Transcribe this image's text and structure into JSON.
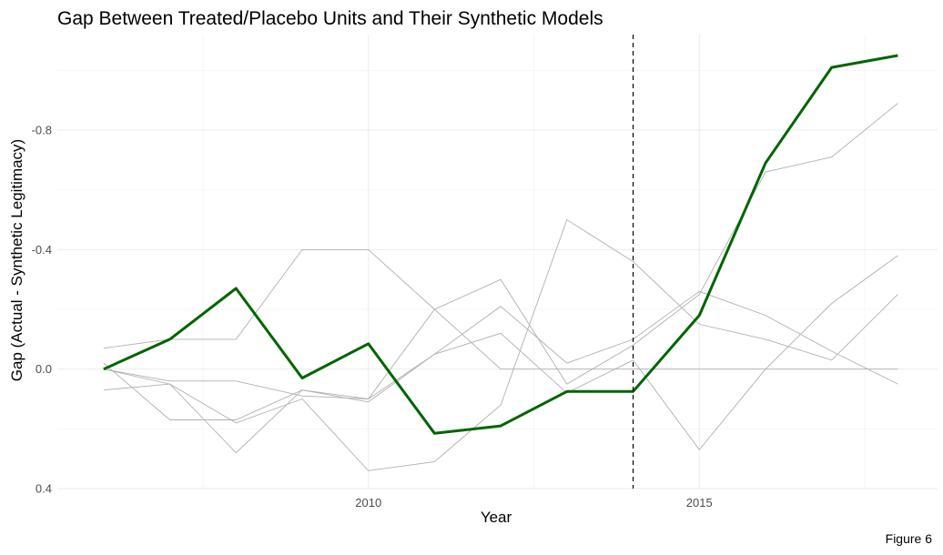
{
  "chart_data": {
    "type": "line",
    "title": "Gap Between Treated/Placebo Units and Their Synthetic Models",
    "xlabel": "Year",
    "ylabel": "Gap (Actual - Synthetic Legitimacy)",
    "caption": "Figure 6",
    "x": [
      2006,
      2007,
      2008,
      2009,
      2010,
      2011,
      2012,
      2013,
      2014,
      2015,
      2016,
      2017,
      2018
    ],
    "xlim": [
      2005.3,
      2018.6
    ],
    "ylim": [
      0.4,
      -1.12
    ],
    "y_reversed": true,
    "x_ticks": [
      2010,
      2015
    ],
    "x_tick_labels": [
      "2010",
      "2015"
    ],
    "y_ticks": [
      0.4,
      0.0,
      -0.4,
      -0.8
    ],
    "y_tick_labels": [
      "0.4",
      "0.0",
      "-0.4",
      "-0.8"
    ],
    "intervention_x": 2014,
    "grid": true,
    "treated_color": "#006400",
    "placebo_color": "#b0b0b0",
    "series": [
      {
        "role": "treated",
        "values": [
          0.0,
          -0.1,
          -0.27,
          0.03,
          -0.085,
          0.215,
          0.19,
          0.075,
          0.075,
          -0.18,
          -0.69,
          -1.01,
          -1.05
        ]
      },
      {
        "role": "placebo",
        "values": [
          -0.07,
          -0.1,
          -0.1,
          -0.4,
          -0.4,
          -0.2,
          0.0,
          0.0,
          0.0,
          0.0,
          0.0,
          0.0,
          0.0
        ]
      },
      {
        "role": "placebo",
        "values": [
          0.0,
          0.04,
          0.04,
          0.09,
          0.1,
          -0.2,
          -0.3,
          0.05,
          -0.08,
          -0.25,
          -0.66,
          -0.71,
          -0.89
        ]
      },
      {
        "role": "placebo",
        "values": [
          0.07,
          0.05,
          0.18,
          0.1,
          0.34,
          0.31,
          0.12,
          -0.5,
          -0.36,
          -0.15,
          -0.1,
          -0.03,
          -0.25
        ]
      },
      {
        "role": "placebo",
        "values": [
          -0.02,
          0.17,
          0.17,
          0.07,
          0.11,
          -0.05,
          -0.12,
          0.08,
          -0.03,
          0.27,
          0.0,
          -0.22,
          -0.38
        ]
      },
      {
        "role": "placebo",
        "values": [
          0.0,
          0.05,
          0.28,
          0.07,
          0.1,
          -0.05,
          -0.21,
          -0.02,
          -0.1,
          -0.26,
          -0.18,
          -0.06,
          0.05
        ]
      }
    ]
  }
}
